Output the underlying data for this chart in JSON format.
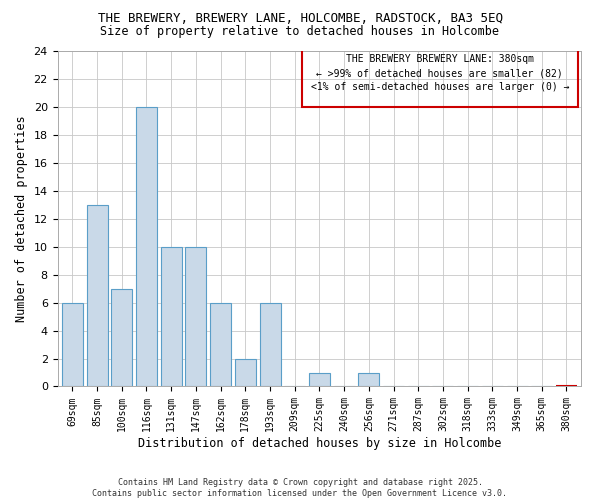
{
  "title_line1": "THE BREWERY, BREWERY LANE, HOLCOMBE, RADSTOCK, BA3 5EQ",
  "title_line2": "Size of property relative to detached houses in Holcombe",
  "xlabel": "Distribution of detached houses by size in Holcombe",
  "ylabel": "Number of detached properties",
  "categories": [
    "69sqm",
    "85sqm",
    "100sqm",
    "116sqm",
    "131sqm",
    "147sqm",
    "162sqm",
    "178sqm",
    "193sqm",
    "209sqm",
    "225sqm",
    "240sqm",
    "256sqm",
    "271sqm",
    "287sqm",
    "302sqm",
    "318sqm",
    "333sqm",
    "349sqm",
    "365sqm",
    "380sqm"
  ],
  "values": [
    6,
    13,
    7,
    20,
    10,
    10,
    6,
    2,
    6,
    0,
    1,
    0,
    1,
    0,
    0,
    0,
    0,
    0,
    0,
    0,
    0
  ],
  "bar_color": "#c9d9e8",
  "bar_edge_color": "#5a9ec8",
  "highlight_index": 20,
  "highlight_color": "#c9d9e8",
  "highlight_edge_color": "#cc0000",
  "ylim": [
    0,
    24
  ],
  "yticks": [
    0,
    2,
    4,
    6,
    8,
    10,
    12,
    14,
    16,
    18,
    20,
    22,
    24
  ],
  "annotation_title": "THE BREWERY BREWERY LANE: 380sqm",
  "annotation_line1": "← >99% of detached houses are smaller (82)",
  "annotation_line2": "<1% of semi-detached houses are larger (0) →",
  "annotation_box_color": "#cc0000",
  "footer_line1": "Contains HM Land Registry data © Crown copyright and database right 2025.",
  "footer_line2": "Contains public sector information licensed under the Open Government Licence v3.0.",
  "bg_color": "#ffffff",
  "grid_color": "#c8c8c8"
}
